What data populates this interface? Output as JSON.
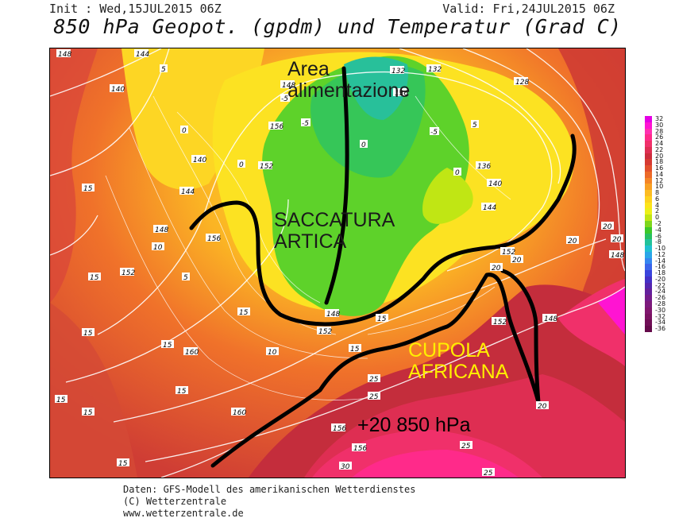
{
  "header": {
    "init": "Init : Wed,15JUL2015 06Z",
    "valid": "Valid: Fri,24JUL2015 06Z",
    "title": "850 hPa Geopot. (gpdm) und Temperatur (Grad C)"
  },
  "annotations": {
    "feed_area": "Area\nalimentazione",
    "trough": "SACCATURA\nARTICA",
    "dome": "CUPOLA\nAFRICANA",
    "temp": "+20 850 hPa"
  },
  "legend": [
    {
      "label": "32",
      "color": "#e400e4"
    },
    {
      "label": "30",
      "color": "#ff14d2"
    },
    {
      "label": "28",
      "color": "#ff30b0"
    },
    {
      "label": "26",
      "color": "#ff2a8a"
    },
    {
      "label": "24",
      "color": "#f0306a"
    },
    {
      "label": "22",
      "color": "#de2e52"
    },
    {
      "label": "20",
      "color": "#cc2c3c"
    },
    {
      "label": "18",
      "color": "#d63a32"
    },
    {
      "label": "16",
      "color": "#e2502c"
    },
    {
      "label": "14",
      "color": "#ec6a28"
    },
    {
      "label": "12",
      "color": "#f48426"
    },
    {
      "label": "10",
      "color": "#f8a024"
    },
    {
      "label": "8",
      "color": "#fcbc22"
    },
    {
      "label": "6",
      "color": "#fdd21e"
    },
    {
      "label": "4",
      "color": "#fde41a"
    },
    {
      "label": "2",
      "color": "#ecf018"
    },
    {
      "label": "0",
      "color": "#c0e614"
    },
    {
      "label": "-2",
      "color": "#7ed61c"
    },
    {
      "label": "-4",
      "color": "#3cc82a"
    },
    {
      "label": "-6",
      "color": "#28c060"
    },
    {
      "label": "-8",
      "color": "#22c29a"
    },
    {
      "label": "-10",
      "color": "#20c0d0"
    },
    {
      "label": "-12",
      "color": "#2aa6e8"
    },
    {
      "label": "-14",
      "color": "#3486f0"
    },
    {
      "label": "-16",
      "color": "#3a64ea"
    },
    {
      "label": "-18",
      "color": "#3a44dc"
    },
    {
      "label": "-20",
      "color": "#4430c6"
    },
    {
      "label": "-22",
      "color": "#5426b0"
    },
    {
      "label": "-24",
      "color": "#64209c"
    },
    {
      "label": "-26",
      "color": "#741c8a"
    },
    {
      "label": "-28",
      "color": "#7c1a7c"
    },
    {
      "label": "-30",
      "color": "#80166e"
    },
    {
      "label": "-32",
      "color": "#7a1262"
    },
    {
      "label": "-34",
      "color": "#700e56"
    },
    {
      "label": "-36",
      "color": "#640a4a"
    }
  ],
  "map_labels": {
    "geopotential": [
      "148",
      "140",
      "144",
      "140",
      "140",
      "144",
      "148",
      "152",
      "148",
      "156",
      "152",
      "156",
      "160",
      "160",
      "156",
      "156",
      "148",
      "152",
      "136",
      "132",
      "128",
      "132",
      "136",
      "140",
      "144",
      "148",
      "152",
      "152",
      "148"
    ],
    "temperature": [
      "0",
      "0",
      "-5",
      "-5",
      "-5",
      "0",
      "0",
      "5",
      "5",
      "5",
      "10",
      "10",
      "15",
      "15",
      "15",
      "15",
      "15",
      "15",
      "15",
      "15",
      "15",
      "15",
      "15",
      "20",
      "20",
      "20",
      "20",
      "20",
      "20",
      "25",
      "25",
      "25",
      "25",
      "30"
    ]
  },
  "footer": {
    "line1": "Daten: GFS-Modell des amerikanischen Wetterdienstes",
    "line2": "(C) Wetterzentrale",
    "line3": "www.wetterzentrale.de"
  }
}
